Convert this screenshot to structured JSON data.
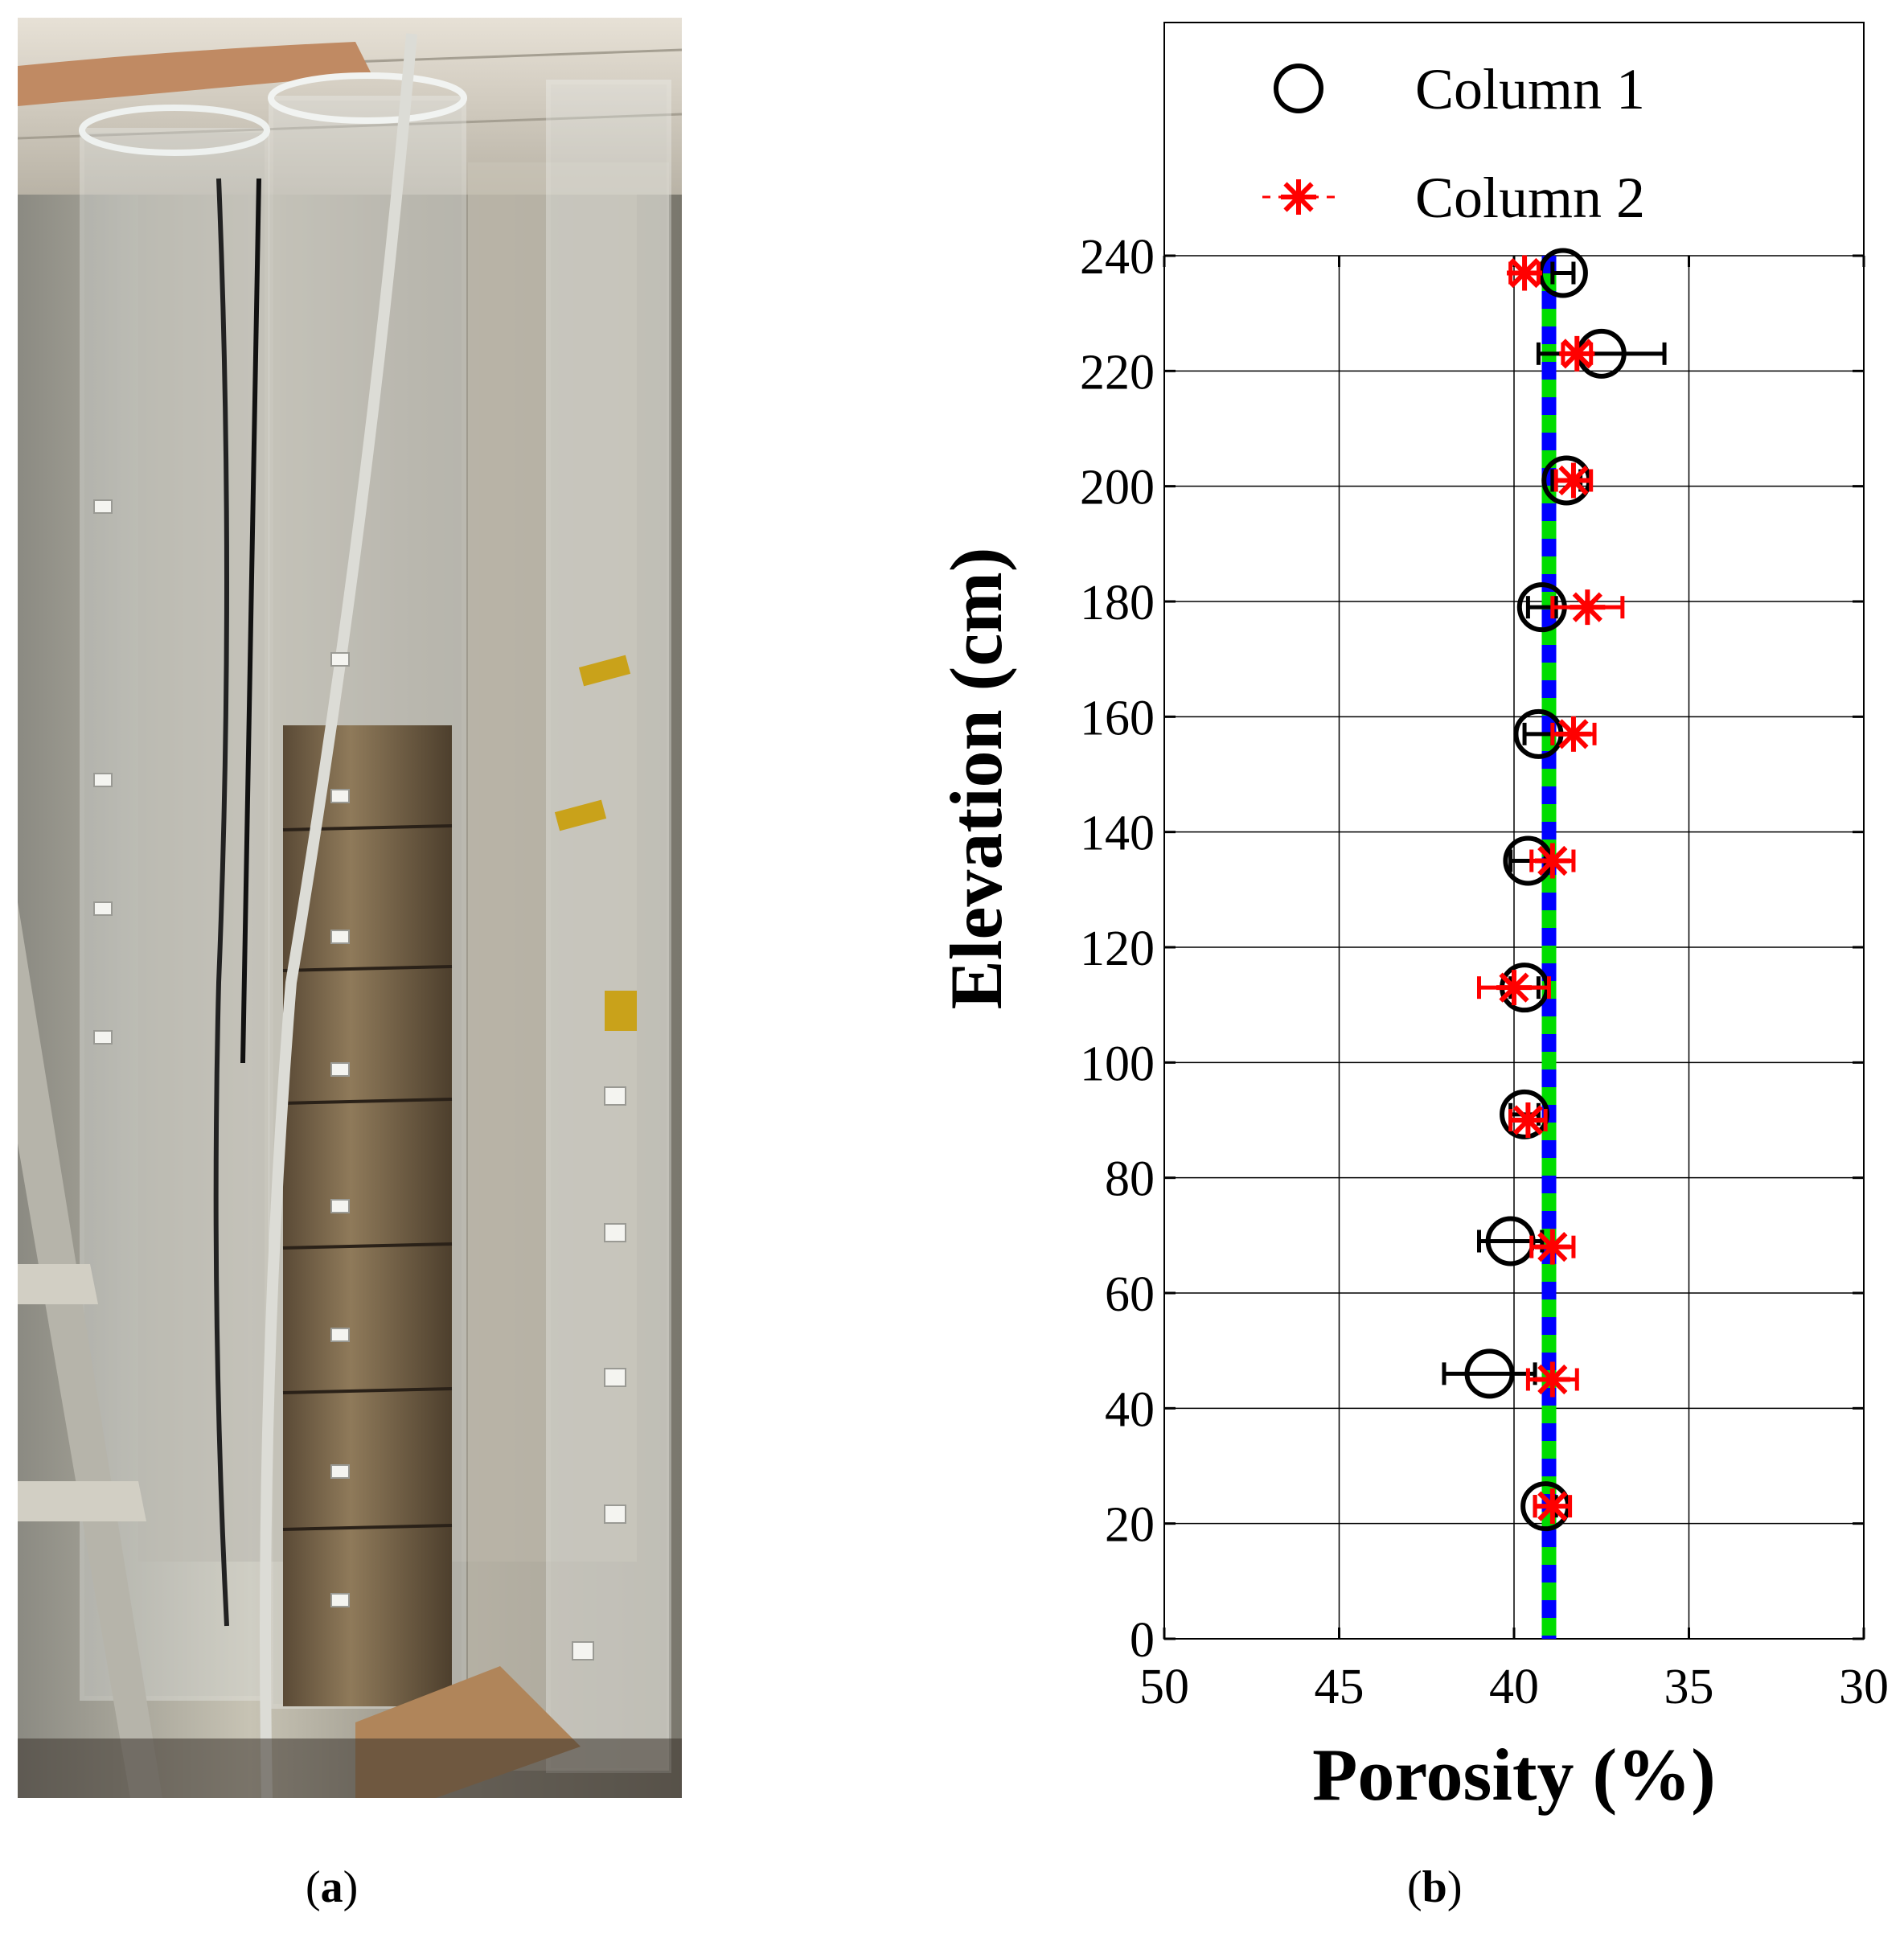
{
  "panels": {
    "a": {
      "label_open": "(",
      "label_letter": "a",
      "label_close": ")",
      "photo_desc_icon": "lab-sand-columns-photo"
    },
    "b": {
      "label_open": "(",
      "label_letter": "b",
      "label_close": ")"
    }
  },
  "chart_data": {
    "type": "scatter",
    "title": "",
    "xlabel": "Porosity (%)",
    "ylabel": "Elevation (cm)",
    "xlim": [
      50,
      30
    ],
    "x_reversed": true,
    "ylim": [
      0,
      240
    ],
    "x_ticks": [
      50,
      45,
      40,
      35,
      30
    ],
    "y_ticks": [
      0,
      20,
      40,
      60,
      80,
      100,
      120,
      140,
      160,
      180,
      200,
      220,
      240
    ],
    "grid": true,
    "legend_position": "top",
    "series": [
      {
        "name": "Column 1",
        "marker": "circle",
        "color": "#000000",
        "points": [
          {
            "x": 38.6,
            "y": 237,
            "xerr": 0.3
          },
          {
            "x": 37.5,
            "y": 223,
            "xerr": 1.8
          },
          {
            "x": 38.5,
            "y": 201,
            "xerr": 0.4
          },
          {
            "x": 39.2,
            "y": 179,
            "xerr": 0.4
          },
          {
            "x": 39.3,
            "y": 157,
            "xerr": 0.4
          },
          {
            "x": 39.6,
            "y": 135,
            "xerr": 0.5
          },
          {
            "x": 39.7,
            "y": 113,
            "xerr": 0.4
          },
          {
            "x": 39.7,
            "y": 91,
            "xerr": 0.4
          },
          {
            "x": 40.1,
            "y": 69,
            "xerr": 0.9
          },
          {
            "x": 40.7,
            "y": 46,
            "xerr": 1.3
          },
          {
            "x": 39.1,
            "y": 23,
            "xerr": 0.3
          }
        ]
      },
      {
        "name": "Column 2",
        "marker": "asterisk",
        "color": "#ff0000",
        "points": [
          {
            "x": 39.7,
            "y": 237,
            "xerr": 0.4
          },
          {
            "x": 38.2,
            "y": 223,
            "xerr": 0.4
          },
          {
            "x": 38.3,
            "y": 201,
            "xerr": 0.5
          },
          {
            "x": 37.9,
            "y": 179,
            "xerr": 1.0
          },
          {
            "x": 38.3,
            "y": 157,
            "xerr": 0.6
          },
          {
            "x": 38.9,
            "y": 135,
            "xerr": 0.6
          },
          {
            "x": 40.0,
            "y": 113,
            "xerr": 1.0
          },
          {
            "x": 39.6,
            "y": 90,
            "xerr": 0.5
          },
          {
            "x": 38.9,
            "y": 68,
            "xerr": 0.6
          },
          {
            "x": 38.9,
            "y": 45,
            "xerr": 0.7
          },
          {
            "x": 38.9,
            "y": 23,
            "xerr": 0.5
          }
        ]
      }
    ],
    "reference_line": {
      "x": 39.0,
      "colors": [
        "#0000ff",
        "#00dd00"
      ]
    }
  }
}
